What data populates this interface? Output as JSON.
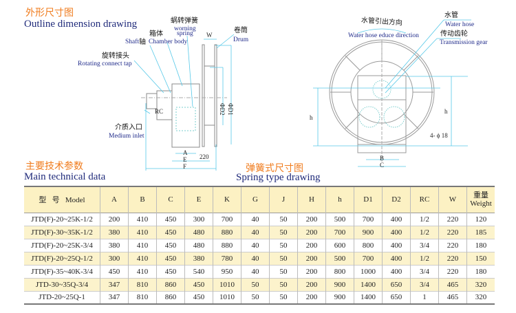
{
  "outline": {
    "title_cn": "外形尺寸图",
    "title_en": "Outline dimension drawing",
    "labels": {
      "spring_cn": "蜗转弹簧",
      "spring_en1": "worning",
      "spring_en2": "spring",
      "chamber_cn": "箱体",
      "shaft_en": "Shaft",
      "shaft_cn": "轴",
      "chamber_en": "Chamber body",
      "drum_cn": "卷筒",
      "drum_en": "Drum",
      "rotating_cn": "旋转接头",
      "rotating_en": "Rotating connect tap",
      "inlet_cn": "介质入口",
      "inlet_en": "Medium inlet"
    },
    "dims": {
      "w": "W",
      "d2": "ΦD2",
      "d1": "ΦD1",
      "rc": "RC",
      "a": "A",
      "e": "E",
      "f": "F",
      "d220": "220"
    }
  },
  "spring": {
    "title_cn": "弹簧式尺寸图",
    "title_en": "Spring type drawing",
    "labels": {
      "direction_cn": "水管引出方向",
      "direction_en": "Water hose educe direction",
      "hose_cn": "水管",
      "hose_en": "Water hose",
      "gear_cn": "传动齿轮",
      "gear_en": "Transmission gear"
    },
    "dims": {
      "h_left": "h",
      "h_right": "h",
      "holes": "4- ϕ 18",
      "b": "B",
      "c": "C"
    }
  },
  "tech": {
    "title_cn": "主要技术参数",
    "title_en": "Main technical data",
    "header": {
      "model_cn1": "型",
      "model_cn2": "号",
      "model_en": "Model",
      "cols": [
        "A",
        "B",
        "C",
        "E",
        "K",
        "G",
        "J",
        "H",
        "h",
        "D1",
        "D2",
        "RC",
        "W"
      ],
      "weight_cn": "重量",
      "weight_en": "Weight"
    },
    "rows": [
      [
        "JTD(F)-20~25K-1/2",
        "200",
        "410",
        "450",
        "300",
        "700",
        "40",
        "50",
        "200",
        "500",
        "700",
        "400",
        "1/2",
        "220",
        "120"
      ],
      [
        "JTD(F)-30~35K-1/2",
        "380",
        "410",
        "450",
        "480",
        "880",
        "40",
        "50",
        "200",
        "700",
        "900",
        "400",
        "1/2",
        "220",
        "185"
      ],
      [
        "JTD(F)-20~25K-3/4",
        "380",
        "410",
        "450",
        "480",
        "880",
        "40",
        "50",
        "200",
        "600",
        "800",
        "400",
        "3/4",
        "220",
        "180"
      ],
      [
        "JTD(F)-20~25Q-1/2",
        "300",
        "410",
        "450",
        "380",
        "780",
        "40",
        "50",
        "200",
        "500",
        "700",
        "400",
        "1/2",
        "220",
        "150"
      ],
      [
        "JTD(F)-35~40K-3/4",
        "450",
        "410",
        "450",
        "540",
        "950",
        "40",
        "50",
        "200",
        "800",
        "1000",
        "400",
        "3/4",
        "220",
        "180"
      ],
      [
        "JTD-30~35Q-3/4",
        "347",
        "810",
        "860",
        "450",
        "1010",
        "50",
        "50",
        "200",
        "900",
        "1400",
        "650",
        "3/4",
        "465",
        "320"
      ],
      [
        "JTD-20~25Q-1",
        "347",
        "810",
        "860",
        "450",
        "1010",
        "50",
        "50",
        "200",
        "900",
        "1400",
        "650",
        "1",
        "465",
        "320"
      ]
    ]
  },
  "colors": {
    "heading": "#f07c1e",
    "english": "#1f2a7a",
    "leader": "#55c8e8",
    "header_bg": "#fcf1c3"
  }
}
